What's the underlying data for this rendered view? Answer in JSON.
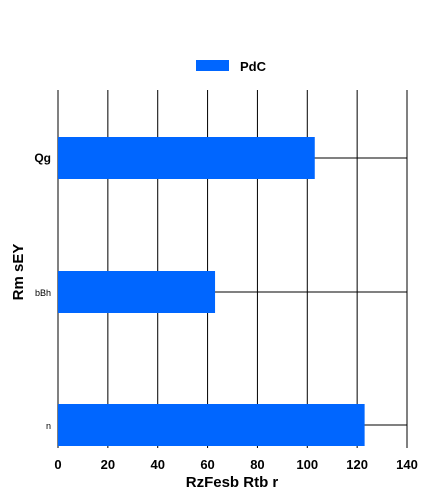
{
  "chart_data": {
    "type": "bar",
    "orientation": "horizontal",
    "categories": [
      "Qg",
      "bBh",
      "n"
    ],
    "series": [
      {
        "name": "PdC",
        "values": [
          103,
          63,
          123
        ],
        "color": "#0066ff"
      }
    ],
    "xlabel": "RzFesb Rtb r",
    "ylabel": "Rm sEY",
    "xlim": [
      0,
      140
    ],
    "xticks": [
      0,
      20,
      40,
      60,
      80,
      100,
      120,
      140
    ],
    "grid": true,
    "legend_position": "top-center"
  }
}
